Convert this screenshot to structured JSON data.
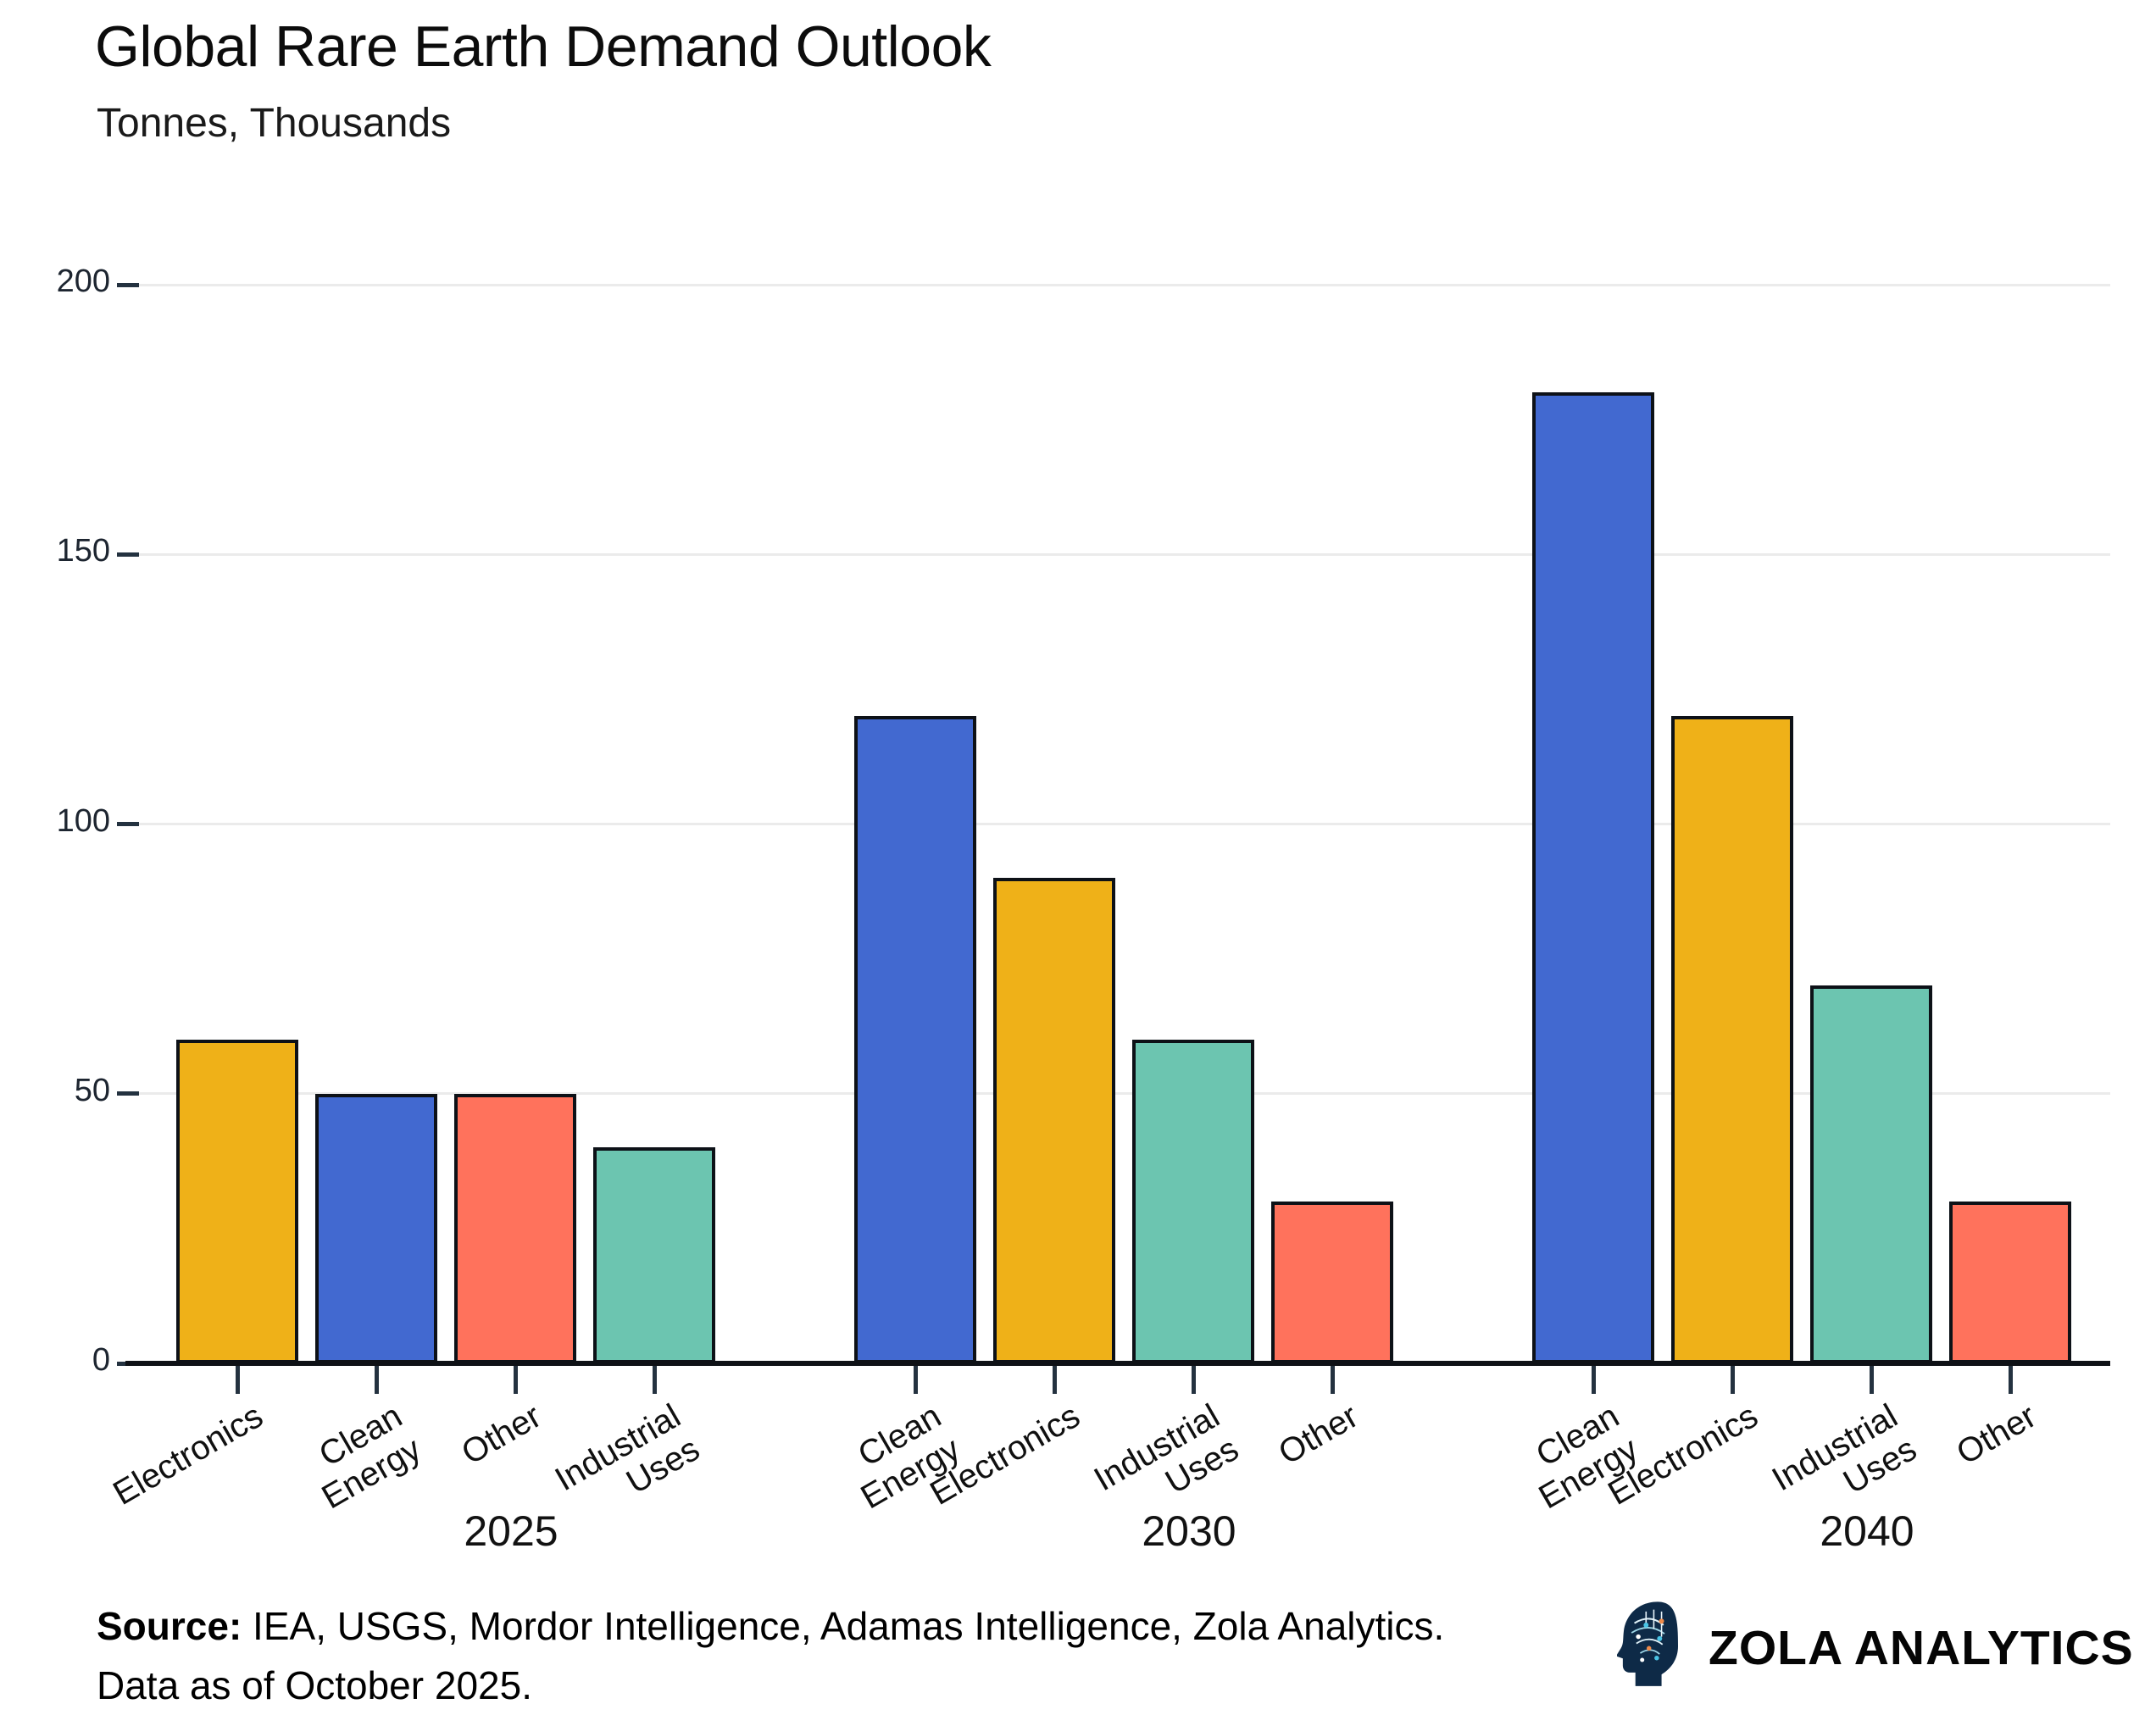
{
  "header": {
    "title": "Global Rare Earth Demand Outlook",
    "subtitle": "Tonnes, Thousands"
  },
  "chart_data": {
    "type": "bar",
    "title": "Global Rare Earth Demand Outlook",
    "unit_label": "Tonnes, Thousands",
    "ylim": [
      0,
      200
    ],
    "yticks": [
      0,
      50,
      100,
      150,
      200
    ],
    "grid": true,
    "legend": false,
    "bar_outline_color": "#0d1117",
    "palette": {
      "Electronics": "#efb118",
      "Clean Energy": "#4269d0",
      "Other": "#ff725c",
      "Industrial Uses": "#6cc5b0"
    },
    "groups": [
      {
        "year": "2025",
        "bars": [
          {
            "label": "Electronics",
            "value": 60,
            "color": "#efb118"
          },
          {
            "label": "Clean Energy",
            "value": 50,
            "color": "#4269d0"
          },
          {
            "label": "Other",
            "value": 50,
            "color": "#ff725c"
          },
          {
            "label": "Industrial Uses",
            "value": 40,
            "color": "#6cc5b0"
          }
        ]
      },
      {
        "year": "2030",
        "bars": [
          {
            "label": "Clean Energy",
            "value": 120,
            "color": "#4269d0"
          },
          {
            "label": "Electronics",
            "value": 90,
            "color": "#efb118"
          },
          {
            "label": "Industrial Uses",
            "value": 60,
            "color": "#6cc5b0"
          },
          {
            "label": "Other",
            "value": 30,
            "color": "#ff725c"
          }
        ]
      },
      {
        "year": "2040",
        "bars": [
          {
            "label": "Clean Energy",
            "value": 180,
            "color": "#4269d0"
          },
          {
            "label": "Electronics",
            "value": 120,
            "color": "#efb118"
          },
          {
            "label": "Industrial Uses",
            "value": 70,
            "color": "#6cc5b0"
          },
          {
            "label": "Other",
            "value": 30,
            "color": "#ff725c"
          }
        ]
      }
    ]
  },
  "footer": {
    "source_label": "Source:",
    "source_text": " IEA, USGS, Mordor Intelligence, Adamas Intelligence, Zola Analytics.",
    "line2": "Data as of October 2025."
  },
  "brand": {
    "name": "ZOLA ANALYTICS",
    "icon": "brain-circuit-head-icon"
  }
}
